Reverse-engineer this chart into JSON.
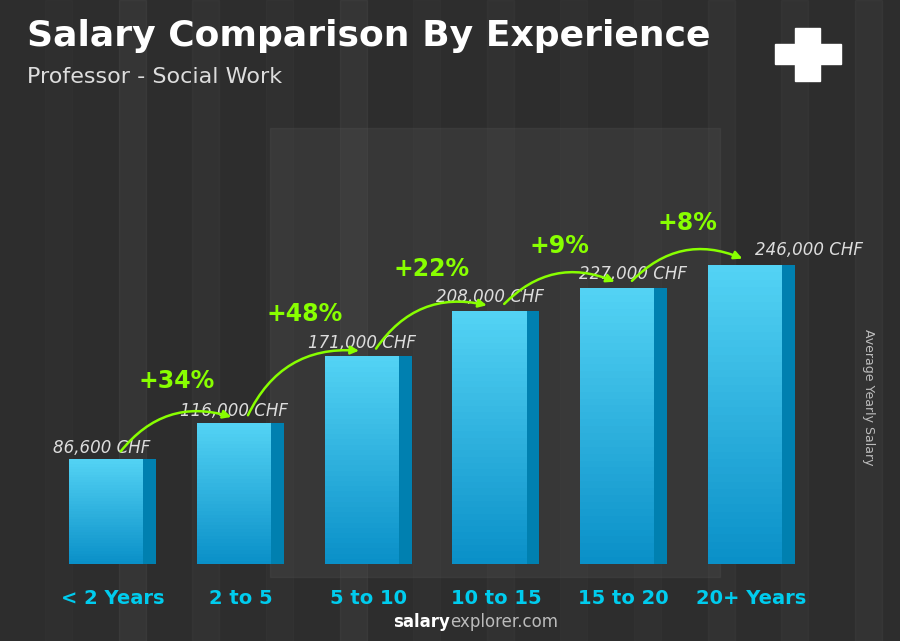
{
  "title": "Salary Comparison By Experience",
  "subtitle": "Professor - Social Work",
  "ylabel": "Average Yearly Salary",
  "footer": "salaryexplorer.com",
  "categories": [
    "< 2 Years",
    "2 to 5",
    "5 to 10",
    "10 to 15",
    "15 to 20",
    "20+ Years"
  ],
  "values": [
    86600,
    116000,
    171000,
    208000,
    227000,
    246000
  ],
  "labels": [
    "86,600 CHF",
    "116,000 CHF",
    "171,000 CHF",
    "208,000 CHF",
    "227,000 CHF",
    "246,000 CHF"
  ],
  "pct_labels": [
    "+34%",
    "+48%",
    "+22%",
    "+9%",
    "+8%"
  ],
  "bar_color_front": "#1ab8e8",
  "bar_color_light": "#55d4f5",
  "bar_color_side": "#0080b0",
  "bar_color_top": "#88e8ff",
  "bg_dark": "#3a3a3a",
  "bg_overlay": "#505050",
  "title_color": "#ffffff",
  "subtitle_color": "#dddddd",
  "label_color": "#dddddd",
  "pct_color": "#88ff00",
  "xtick_color": "#00ccee",
  "ylabel_color": "#cccccc",
  "footer_bold_color": "#ffffff",
  "footer_normal_color": "#888888",
  "flag_bg": "#cc2222",
  "flag_cross": "#ffffff",
  "title_fontsize": 26,
  "subtitle_fontsize": 16,
  "label_fontsize": 12,
  "pct_fontsize": 17,
  "xtick_fontsize": 14,
  "ylabel_fontsize": 9,
  "footer_fontsize": 12,
  "max_val": 290000,
  "bar_width": 0.58,
  "bar_depth": 0.1
}
